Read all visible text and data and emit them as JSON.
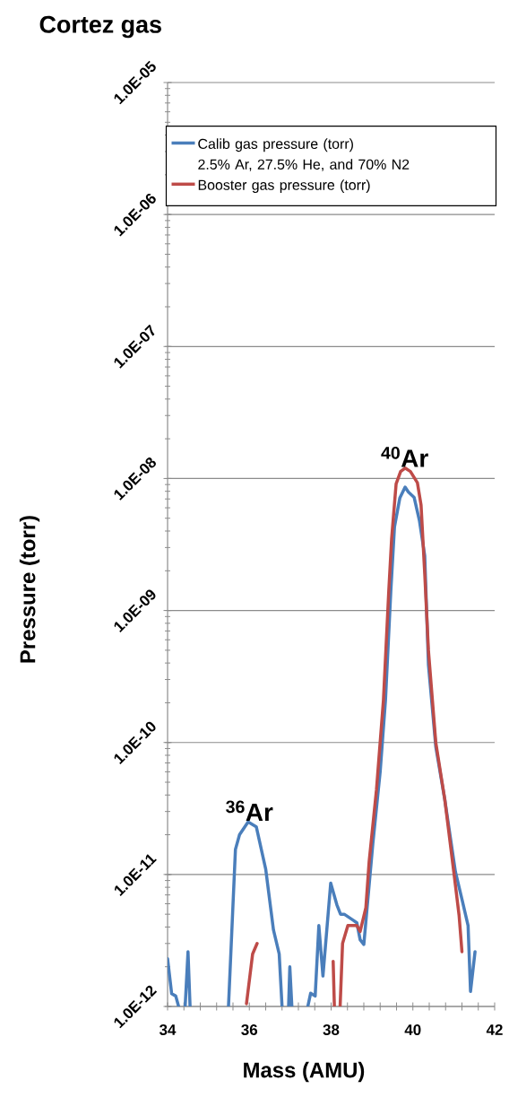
{
  "chart_data": {
    "type": "line",
    "title": "Cortez gas",
    "xlabel": "Mass (AMU)",
    "ylabel": "Pressure (torr)",
    "xlim": [
      34,
      42
    ],
    "xticks": [
      34,
      {
        "value": 34.4,
        "label": null
      },
      {
        "value": 34.8,
        "label": null
      },
      {
        "value": 35.2,
        "label": null
      },
      {
        "value": 35.6,
        "label": null
      },
      36,
      {
        "value": 36.4,
        "label": null
      },
      {
        "value": 36.8,
        "label": null
      },
      {
        "value": 37.2,
        "label": null
      },
      {
        "value": 37.6,
        "label": null
      },
      38,
      {
        "value": 38.4,
        "label": null
      },
      {
        "value": 38.8,
        "label": null
      },
      {
        "value": 39.2,
        "label": null
      },
      {
        "value": 39.6,
        "label": null
      },
      40,
      {
        "value": 40.4,
        "label": null
      },
      {
        "value": 40.8,
        "label": null
      },
      {
        "value": 41.2,
        "label": null
      },
      {
        "value": 41.6,
        "label": null
      },
      42
    ],
    "ylim": [
      1e-12,
      1e-05
    ],
    "yticks": [
      {
        "value": 1e-12,
        "label": "1.0E-12"
      },
      {
        "value": 1e-11,
        "label": "1.0E-11"
      },
      {
        "value": 1e-10,
        "label": "1.0E-10"
      },
      {
        "value": 1e-09,
        "label": "1.0E-09"
      },
      {
        "value": 1e-08,
        "label": "1.0E-08"
      },
      {
        "value": 1e-07,
        "label": "1.0E-07"
      },
      {
        "value": 1e-06,
        "label": "1.0E-06"
      },
      {
        "value": 1e-05,
        "label": "1.0E-05"
      }
    ],
    "log": true,
    "grid": "y",
    "legend": "top",
    "line_style": "solid",
    "marker": "none",
    "annotations": [
      {
        "text": "$^{36}$Ar",
        "x": 36.0,
        "y": 2.5e-11
      },
      {
        "text": "$^{40}$Ar",
        "x": 39.8,
        "y": 1.2e-08
      },
      "2.5% Ar, 27.5% He, and 70% N2"
    ],
    "series": [
      {
        "name": "Calib gas pressure (torr)",
        "color": "#4a7ebb",
        "x": [
          34.0,
          34.1,
          34.2,
          34.27,
          34.35,
          34.43,
          34.5,
          34.55,
          35.0,
          35.49,
          35.66,
          35.76,
          35.97,
          36.17,
          36.4,
          36.59,
          36.73,
          36.8,
          36.9,
          36.96,
          36.99,
          37.04,
          37.2,
          37.43,
          37.5,
          37.61,
          37.7,
          37.8,
          37.99,
          38.14,
          38.23,
          38.32,
          38.54,
          38.63,
          38.71,
          38.8,
          39.02,
          39.2,
          39.33,
          39.46,
          39.55,
          39.68,
          39.81,
          39.89,
          40.03,
          40.16,
          40.29,
          40.38,
          40.56,
          40.78,
          41.04,
          41.21,
          41.35,
          41.41,
          41.52
        ],
        "values": [
          2.3e-12,
          1.25e-12,
          1.2e-12,
          1e-12,
          null,
          1e-12,
          2.6e-12,
          1e-12,
          null,
          1e-12,
          1.55e-11,
          2e-11,
          2.5e-11,
          2.3e-11,
          1.1e-11,
          3.8e-12,
          2.5e-12,
          1e-12,
          null,
          1e-12,
          2e-12,
          1e-12,
          null,
          1e-12,
          1.26e-12,
          1.2e-12,
          4.1e-12,
          1.7e-12,
          8.6e-12,
          5.9e-12,
          5e-12,
          5e-12,
          4.5e-12,
          4.3e-12,
          3.2e-12,
          2.95e-12,
          1.7e-11,
          6e-11,
          2.1e-10,
          1.4e-09,
          4.3e-09,
          7.1e-09,
          8.6e-09,
          7.9e-09,
          7.2e-09,
          4.8e-09,
          2.6e-09,
          3.9e-10,
          9.3e-11,
          3.7e-11,
          1.05e-11,
          6.3e-12,
          4.1e-12,
          1.3e-12,
          2.6e-12
        ]
      },
      {
        "name": "Booster gas pressure (torr)",
        "color": "#be4b48",
        "x": [
          35.93,
          36.08,
          36.19,
          37.0,
          38.05,
          38.08,
          38.15,
          38.22,
          38.28,
          38.41,
          38.63,
          38.71,
          38.85,
          38.93,
          39.11,
          39.28,
          39.41,
          39.48,
          39.59,
          39.7,
          39.81,
          39.94,
          40.11,
          40.2,
          40.29,
          40.38,
          40.56,
          40.78,
          41.0,
          41.13,
          41.2
        ],
        "values": [
          1.05e-12,
          2.5e-12,
          3e-12,
          null,
          2.2e-12,
          1e-12,
          null,
          1e-12,
          3e-12,
          4.1e-12,
          4.1e-12,
          3.7e-12,
          5.6e-12,
          1.25e-11,
          4.4e-11,
          2.1e-10,
          1.4e-09,
          3.5e-09,
          9.1e-09,
          1.13e-08,
          1.2e-08,
          1.13e-08,
          9.3e-09,
          6.3e-09,
          1.9e-09,
          5e-10,
          1e-10,
          3.7e-11,
          1.05e-11,
          4.9e-12,
          2.6e-12
        ]
      }
    ]
  }
}
